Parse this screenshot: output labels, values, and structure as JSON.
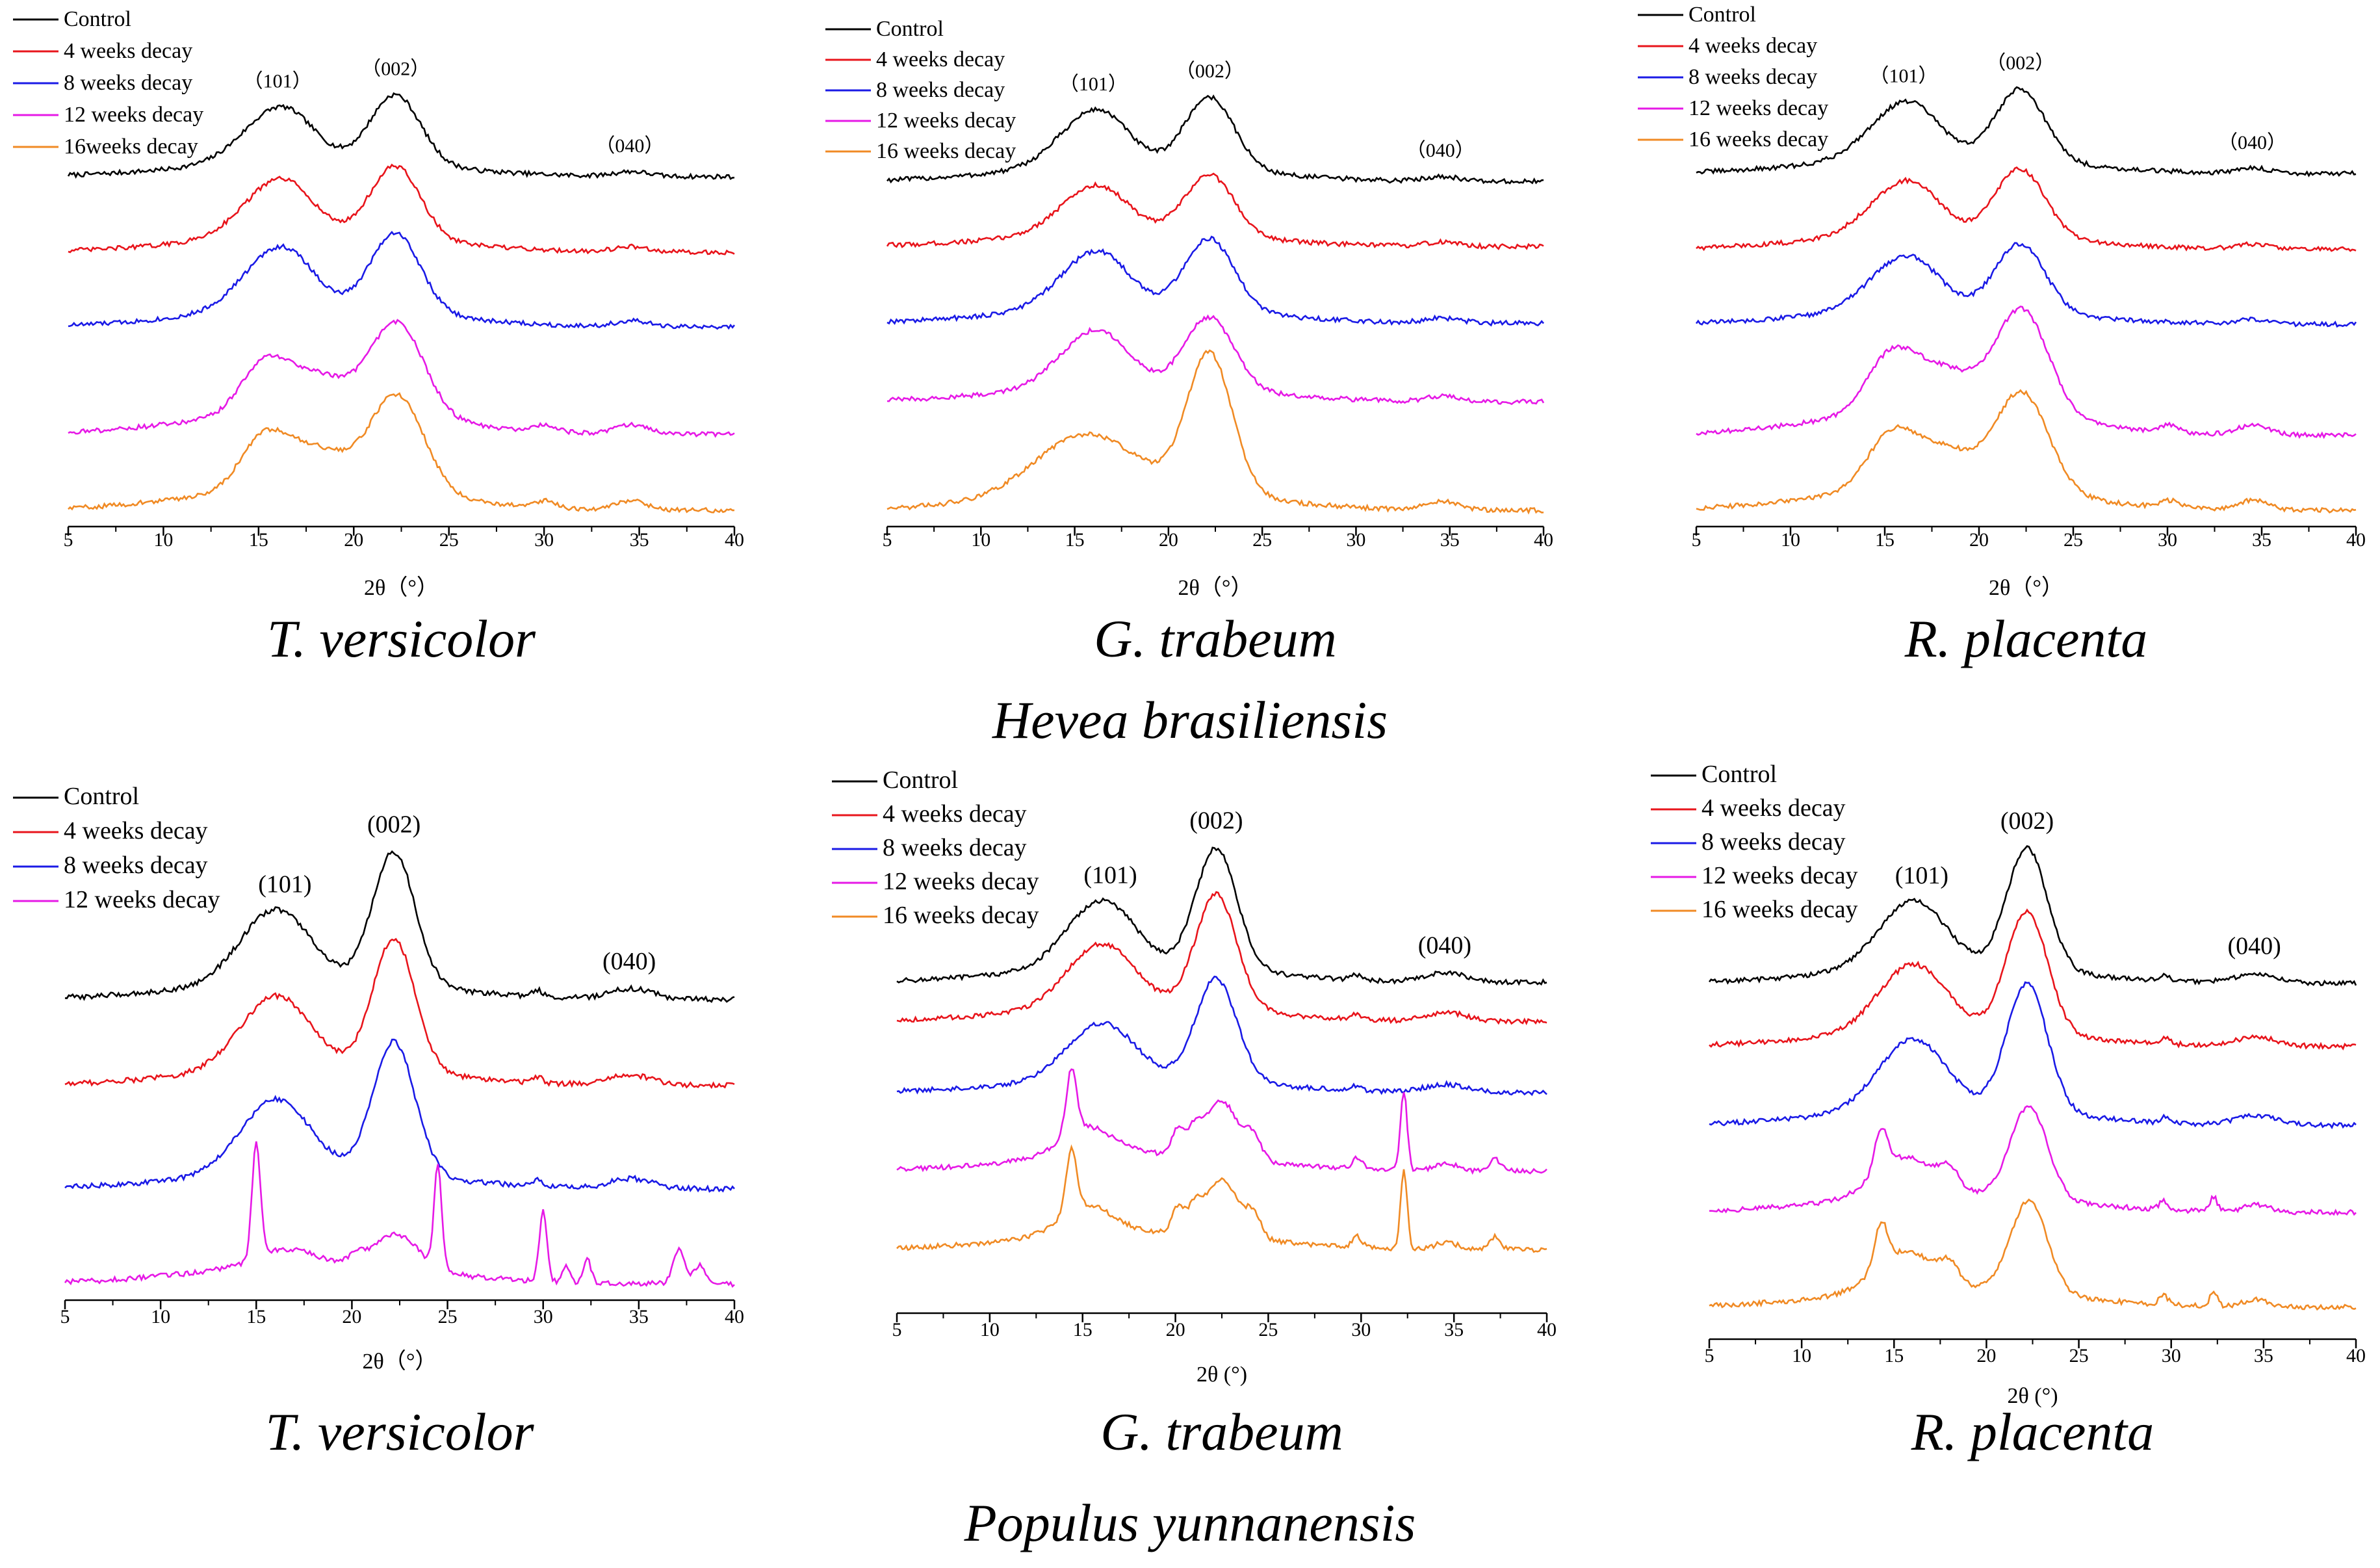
{
  "figure": {
    "caption_top": "Hevea brasiliensis",
    "caption_bottom": "Populus yunnanensis",
    "colors": {
      "Control": "#000000",
      "4 weeks decay": "#e8141b",
      "8 weeks decay": "#1a1ae6",
      "12 weeks decay": "#e619e6",
      "16 weeks decay": "#f08a24",
      "16 weeks decay (alt)": "#e8a317",
      "axis": "#000000"
    }
  },
  "chart_data": [
    {
      "type": "line",
      "panel": "top-left",
      "title": "T. versicolor",
      "xlabel": "2θ（°）",
      "ylabel": "",
      "xlim": [
        5,
        40
      ],
      "xticks": [
        "5",
        "10",
        "15",
        "20",
        "25",
        "30",
        "35",
        "40"
      ],
      "legend": [
        "Control",
        "4 weeks decay",
        "8 weeks decay",
        "12 weeks decay",
        "16weeks decay"
      ],
      "legend_position": "top-left",
      "annotations": [
        {
          "text": "（101）",
          "x": 16,
          "series": "Control"
        },
        {
          "text": "（002）",
          "x": 22.2,
          "series": "Control"
        },
        {
          "text": "（040）",
          "x": 34.5,
          "series": "Control"
        }
      ],
      "series": [
        {
          "name": "Control",
          "profile": "A",
          "offset": 4.2,
          "scale": 1.0
        },
        {
          "name": "4 weeks decay",
          "profile": "A",
          "offset": 3.2,
          "scale": 1.05
        },
        {
          "name": "8 weeks decay",
          "profile": "A",
          "offset": 2.2,
          "scale": 1.15
        },
        {
          "name": "12 weeks decay",
          "profile": "B",
          "offset": 1.0,
          "scale": 1.35
        },
        {
          "name": "16weeks decay",
          "profile": "B",
          "offset": 0.0,
          "scale": 1.4
        }
      ]
    },
    {
      "type": "line",
      "panel": "top-middle",
      "title": "G. trabeum",
      "xlabel": "2θ（°）",
      "ylabel": "",
      "xlim": [
        5,
        40
      ],
      "xticks": [
        "5",
        "10",
        "15",
        "20",
        "25",
        "30",
        "35",
        "40"
      ],
      "legend": [
        "Control",
        "4 weeks decay",
        "8 weeks decay",
        "12 weeks decay",
        "16 weeks decay"
      ],
      "legend_position": "top-left",
      "annotations": [
        {
          "text": "（101）",
          "x": 16,
          "series": "Control"
        },
        {
          "text": "（002）",
          "x": 22.2,
          "series": "Control"
        },
        {
          "text": "（040）",
          "x": 34.5,
          "series": "Control"
        }
      ],
      "series": [
        {
          "name": "Control",
          "profile": "A",
          "offset": 4.0,
          "scale": 1.0
        },
        {
          "name": "4 weeks decay",
          "profile": "A",
          "offset": 3.2,
          "scale": 0.85
        },
        {
          "name": "8 weeks decay",
          "profile": "A",
          "offset": 2.2,
          "scale": 1.0
        },
        {
          "name": "12 weeks decay",
          "profile": "A",
          "offset": 1.2,
          "scale": 1.0
        },
        {
          "name": "16 weeks decay",
          "profile": "C",
          "offset": 0.0,
          "scale": 1.3
        }
      ]
    },
    {
      "type": "line",
      "panel": "top-right",
      "title": "R. placenta",
      "xlabel": "2θ（°）",
      "ylabel": "",
      "xlim": [
        5,
        40
      ],
      "xticks": [
        "5",
        "10",
        "15",
        "20",
        "25",
        "30",
        "35",
        "40"
      ],
      "legend": [
        "Control",
        "4 weeks decay",
        "8 weeks decay",
        "12 weeks decay",
        "16 weeks decay"
      ],
      "legend_position": "top-left",
      "annotations": [
        {
          "text": "（101）",
          "x": 16,
          "series": "Control"
        },
        {
          "text": "（002）",
          "x": 22.2,
          "series": "Control"
        },
        {
          "text": "（040）",
          "x": 34.5,
          "series": "Control"
        }
      ],
      "series": [
        {
          "name": "Control",
          "profile": "A",
          "offset": 4.3,
          "scale": 1.05
        },
        {
          "name": "4 weeks decay",
          "profile": "A",
          "offset": 3.3,
          "scale": 1.0
        },
        {
          "name": "8 weeks decay",
          "profile": "A",
          "offset": 2.3,
          "scale": 1.0
        },
        {
          "name": "12 weeks decay",
          "profile": "B",
          "offset": 1.0,
          "scale": 1.55
        },
        {
          "name": "16 weeks decay",
          "profile": "B",
          "offset": 0.0,
          "scale": 1.45
        }
      ]
    },
    {
      "type": "line",
      "panel": "bottom-left",
      "title": "T. versicolor",
      "xlabel": "2θ（°）",
      "ylabel": "",
      "xlim": [
        5,
        40
      ],
      "xticks": [
        "5",
        "10",
        "15",
        "20",
        "25",
        "30",
        "35",
        "40"
      ],
      "legend": [
        "Control",
        "4 weeks decay",
        "8 weeks decay",
        "12 weeks decay"
      ],
      "legend_position": "top-left",
      "annotations": [
        {
          "text": "(101)",
          "x": 16.5,
          "series": "Control"
        },
        {
          "text": "(002)",
          "x": 22.2,
          "series": "Control"
        },
        {
          "text": "(040)",
          "x": 34.5,
          "series": "Control"
        }
      ],
      "series": [
        {
          "name": "Control",
          "profile": "D",
          "offset": 3.3,
          "scale": 1.0
        },
        {
          "name": "4 weeks decay",
          "profile": "D",
          "offset": 2.3,
          "scale": 1.0
        },
        {
          "name": "8 weeks decay",
          "profile": "D",
          "offset": 1.1,
          "scale": 1.0
        },
        {
          "name": "12 weeks decay",
          "profile": "E",
          "offset": 0.0,
          "scale": 1.0
        }
      ]
    },
    {
      "type": "line",
      "panel": "bottom-middle",
      "title": "G. trabeum",
      "xlabel": "2θ (°)",
      "ylabel": "",
      "xlim": [
        5,
        40
      ],
      "xticks": [
        "5",
        "10",
        "15",
        "20",
        "25",
        "30",
        "35",
        "40"
      ],
      "legend": [
        "Control",
        "4 weeks decay",
        "8 weeks decay",
        "12 weeks decay",
        "16 weeks decay"
      ],
      "legend_position": "top-left",
      "annotations": [
        {
          "text": "(101)",
          "x": 16.5,
          "series": "Control"
        },
        {
          "text": "(002)",
          "x": 22.2,
          "series": "Control"
        },
        {
          "text": "(040)",
          "x": 34.5,
          "series": "Control"
        }
      ],
      "series": [
        {
          "name": "Control",
          "profile": "D",
          "offset": 4.0,
          "scale": 1.0
        },
        {
          "name": "4 weeks decay",
          "profile": "D",
          "offset": 3.5,
          "scale": 0.95
        },
        {
          "name": "8 weeks decay",
          "profile": "D",
          "offset": 2.6,
          "scale": 0.85
        },
        {
          "name": "12 weeks decay",
          "profile": "F",
          "offset": 1.6,
          "scale": 1.0
        },
        {
          "name": "16 weeks decay",
          "profile": "F",
          "offset": 0.6,
          "scale": 1.0
        }
      ]
    },
    {
      "type": "line",
      "panel": "bottom-right",
      "title": "R. placenta",
      "xlabel": "2θ (°)",
      "ylabel": "",
      "xlim": [
        5,
        40
      ],
      "xticks": [
        "5",
        "10",
        "15",
        "20",
        "25",
        "30",
        "35",
        "40"
      ],
      "legend": [
        "Control",
        "4 weeks decay",
        "8 weeks decay",
        "12 weeks decay",
        "16 weeks decay"
      ],
      "legend_position": "top-left",
      "annotations": [
        {
          "text": "(101)",
          "x": 16.5,
          "series": "Control"
        },
        {
          "text": "(002)",
          "x": 22.2,
          "series": "Control"
        },
        {
          "text": "(040)",
          "x": 34.5,
          "series": "Control"
        }
      ],
      "series": [
        {
          "name": "Control",
          "profile": "D",
          "offset": 4.3,
          "scale": 1.0
        },
        {
          "name": "4 weeks decay",
          "profile": "D",
          "offset": 3.5,
          "scale": 1.0
        },
        {
          "name": "8 weeks decay",
          "profile": "D",
          "offset": 2.5,
          "scale": 1.05
        },
        {
          "name": "12 weeks decay",
          "profile": "G",
          "offset": 1.4,
          "scale": 1.0
        },
        {
          "name": "16 weeks decay",
          "profile": "G",
          "offset": 0.2,
          "scale": 1.0
        }
      ]
    }
  ],
  "profiles_note": "Diffraction intensity profiles in arbitrary units vs 2θ (degrees); peaks: (101) ~15-16.5°, (002) ~22.2°, (040) ~34.5°",
  "profiles": {
    "A": {
      "baseline": 0.2,
      "peaks": [
        [
          15.2,
          0.45,
          1.6
        ],
        [
          16.8,
          0.45,
          1.4
        ],
        [
          22.2,
          1.0,
          1.3
        ],
        [
          34.6,
          0.07,
          0.9
        ]
      ]
    },
    "B": {
      "baseline": 0.0,
      "peaks": [
        [
          15.2,
          0.45,
          1.2
        ],
        [
          17.8,
          0.4,
          1.8
        ],
        [
          22.3,
          1.0,
          1.4
        ],
        [
          30.1,
          0.07,
          0.5
        ],
        [
          34.6,
          0.1,
          0.8
        ]
      ]
    },
    "C": {
      "baseline": 0.0,
      "peaks": [
        [
          15.5,
          0.6,
          2.6
        ],
        [
          22.2,
          1.5,
          1.2
        ],
        [
          34.6,
          0.1,
          0.8
        ]
      ]
    },
    "D": {
      "baseline": 0.0,
      "peaks": [
        [
          15.2,
          0.55,
          1.6
        ],
        [
          16.8,
          0.5,
          1.5
        ],
        [
          22.2,
          1.7,
          1.1
        ],
        [
          29.7,
          0.08,
          0.25
        ],
        [
          34.6,
          0.13,
          1.1
        ]
      ]
    },
    "E": {
      "baseline": 0.0,
      "peaks": [
        [
          15.0,
          1.5,
          0.22
        ],
        [
          16.5,
          0.2,
          1.5
        ],
        [
          20.2,
          0.1,
          0.3
        ],
        [
          22.3,
          0.45,
          1.2
        ],
        [
          24.5,
          1.3,
          0.2
        ],
        [
          30.0,
          0.9,
          0.2
        ],
        [
          31.2,
          0.2,
          0.2
        ],
        [
          32.3,
          0.3,
          0.2
        ],
        [
          37.1,
          0.45,
          0.3
        ],
        [
          38.2,
          0.25,
          0.3
        ]
      ]
    },
    "F": {
      "baseline": 0.0,
      "peaks": [
        [
          14.4,
          0.9,
          0.28
        ],
        [
          15.2,
          0.4,
          1.4
        ],
        [
          20.1,
          0.35,
          0.3
        ],
        [
          21.0,
          0.3,
          0.4
        ],
        [
          22.5,
          0.8,
          0.9
        ],
        [
          24.2,
          0.3,
          0.4
        ],
        [
          29.8,
          0.15,
          0.25
        ],
        [
          32.3,
          1.1,
          0.18
        ],
        [
          34.6,
          0.1,
          0.6
        ],
        [
          37.2,
          0.18,
          0.3
        ]
      ]
    },
    "G": {
      "baseline": 0.0,
      "peaks": [
        [
          14.3,
          0.6,
          0.35
        ],
        [
          15.6,
          0.55,
          1.6
        ],
        [
          18.0,
          0.25,
          0.5
        ],
        [
          22.3,
          1.3,
          1.0
        ],
        [
          29.6,
          0.12,
          0.25
        ],
        [
          32.3,
          0.2,
          0.2
        ],
        [
          34.6,
          0.1,
          0.7
        ]
      ]
    }
  }
}
